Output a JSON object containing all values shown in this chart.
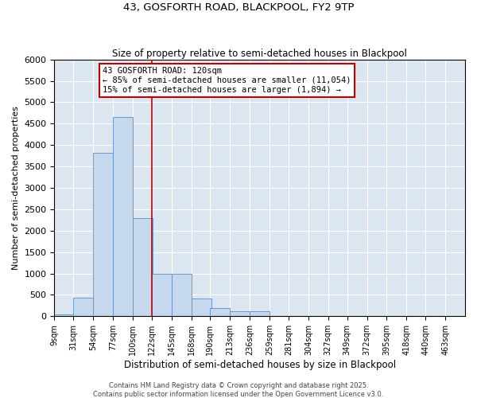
{
  "title1": "43, GOSFORTH ROAD, BLACKPOOL, FY2 9TP",
  "title2": "Size of property relative to semi-detached houses in Blackpool",
  "xlabel": "Distribution of semi-detached houses by size in Blackpool",
  "ylabel": "Number of semi-detached properties",
  "bar_color": "#c5d8ed",
  "bar_edge_color": "#5b8fc9",
  "background_color": "#dce6f1",
  "grid_color": "#ffffff",
  "fig_background": "#ffffff",
  "annotation_text": "43 GOSFORTH ROAD: 120sqm\n← 85% of semi-detached houses are smaller (11,054)\n15% of semi-detached houses are larger (1,894) →",
  "vline_x": 122,
  "vline_color": "#c00000",
  "annotation_box_color": "#ffffff",
  "annotation_box_edge": "#c00000",
  "footer_text": "Contains HM Land Registry data © Crown copyright and database right 2025.\nContains public sector information licensed under the Open Government Licence v3.0.",
  "categories": [
    "9sqm",
    "31sqm",
    "54sqm",
    "77sqm",
    "100sqm",
    "122sqm",
    "145sqm",
    "168sqm",
    "190sqm",
    "213sqm",
    "236sqm",
    "259sqm",
    "281sqm",
    "304sqm",
    "327sqm",
    "349sqm",
    "372sqm",
    "395sqm",
    "418sqm",
    "440sqm",
    "463sqm"
  ],
  "bin_edges": [
    9,
    31,
    54,
    77,
    100,
    122,
    145,
    168,
    190,
    213,
    236,
    259,
    281,
    304,
    327,
    349,
    372,
    395,
    418,
    440,
    463
  ],
  "bin_width": 23,
  "values": [
    50,
    430,
    3820,
    4650,
    2300,
    1000,
    1000,
    420,
    200,
    110,
    110,
    0,
    0,
    0,
    0,
    0,
    0,
    0,
    0,
    0,
    0
  ],
  "ylim": [
    0,
    6000
  ],
  "yticks": [
    0,
    500,
    1000,
    1500,
    2000,
    2500,
    3000,
    3500,
    4000,
    4500,
    5000,
    5500,
    6000
  ]
}
